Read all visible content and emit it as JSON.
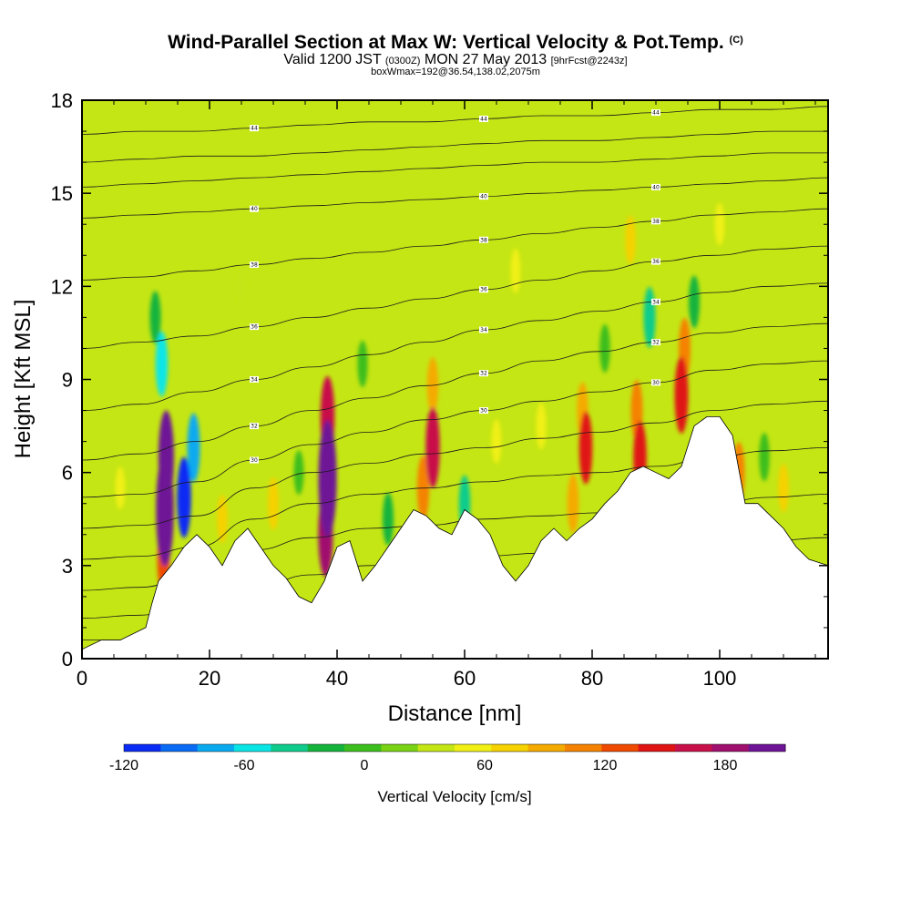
{
  "header": {
    "title": "Wind-Parallel Section at Max W: Vertical Velocity & Pot.Temp.",
    "title_mark": "(C)",
    "valid_prefix": "Valid 1200 JST",
    "valid_zulu": "(0300Z)",
    "valid_date": "MON 27 May 2013",
    "forecast": "[9hrFcst@2243z]",
    "box_info": "boxWmax=192@36.54,138.02,2075m"
  },
  "chart_data": {
    "type": "heatmap",
    "xlabel": "Distance [nm]",
    "ylabel": "Height [Kft MSL]",
    "xlim": [
      0,
      117
    ],
    "ylim": [
      0,
      18
    ],
    "x_ticks": [
      0,
      20,
      40,
      60,
      80,
      100
    ],
    "y_ticks": [
      0,
      3,
      6,
      9,
      12,
      15,
      18
    ],
    "grid": false,
    "colorbar": {
      "title": "Vertical Velocity [cm/s]",
      "placement": "bottom",
      "range": [
        -120,
        210
      ],
      "step": 15,
      "tick_values": [
        -120,
        -60,
        0,
        60,
        120,
        180
      ],
      "tick_labels": [
        "-120",
        "-60",
        "0",
        "60",
        "120",
        "180"
      ],
      "colors": [
        "#0a2af5",
        "#0a6cf5",
        "#0aaaf0",
        "#0ae6e6",
        "#10cc8c",
        "#14b43c",
        "#3cbe1e",
        "#7ad214",
        "#c4e614",
        "#f0f014",
        "#f5d200",
        "#f5aa00",
        "#f58200",
        "#f04a00",
        "#e01414",
        "#c8104a",
        "#a0106e",
        "#6e1496"
      ]
    },
    "background_value": 0,
    "terrain": [
      {
        "x": 0,
        "y": 0.3
      },
      {
        "x": 3,
        "y": 0.6
      },
      {
        "x": 6,
        "y": 0.6
      },
      {
        "x": 10,
        "y": 1.0
      },
      {
        "x": 11,
        "y": 1.8
      },
      {
        "x": 12,
        "y": 2.5
      },
      {
        "x": 14,
        "y": 3.0
      },
      {
        "x": 16,
        "y": 3.6
      },
      {
        "x": 18,
        "y": 4.0
      },
      {
        "x": 20,
        "y": 3.6
      },
      {
        "x": 22,
        "y": 3.0
      },
      {
        "x": 24,
        "y": 3.8
      },
      {
        "x": 26,
        "y": 4.2
      },
      {
        "x": 28,
        "y": 3.6
      },
      {
        "x": 30,
        "y": 3.0
      },
      {
        "x": 32,
        "y": 2.6
      },
      {
        "x": 34,
        "y": 2.0
      },
      {
        "x": 36,
        "y": 1.8
      },
      {
        "x": 38,
        "y": 2.5
      },
      {
        "x": 40,
        "y": 3.6
      },
      {
        "x": 42,
        "y": 3.8
      },
      {
        "x": 44,
        "y": 2.5
      },
      {
        "x": 46,
        "y": 3.0
      },
      {
        "x": 48,
        "y": 3.6
      },
      {
        "x": 50,
        "y": 4.2
      },
      {
        "x": 52,
        "y": 4.8
      },
      {
        "x": 54,
        "y": 4.6
      },
      {
        "x": 56,
        "y": 4.2
      },
      {
        "x": 58,
        "y": 4.0
      },
      {
        "x": 60,
        "y": 4.8
      },
      {
        "x": 62,
        "y": 4.5
      },
      {
        "x": 64,
        "y": 4.0
      },
      {
        "x": 66,
        "y": 3.0
      },
      {
        "x": 68,
        "y": 2.5
      },
      {
        "x": 70,
        "y": 3.0
      },
      {
        "x": 72,
        "y": 3.8
      },
      {
        "x": 74,
        "y": 4.2
      },
      {
        "x": 76,
        "y": 3.8
      },
      {
        "x": 78,
        "y": 4.2
      },
      {
        "x": 80,
        "y": 4.5
      },
      {
        "x": 82,
        "y": 5.0
      },
      {
        "x": 84,
        "y": 5.4
      },
      {
        "x": 86,
        "y": 6.0
      },
      {
        "x": 88,
        "y": 6.2
      },
      {
        "x": 90,
        "y": 6.0
      },
      {
        "x": 92,
        "y": 5.8
      },
      {
        "x": 94,
        "y": 6.2
      },
      {
        "x": 96,
        "y": 7.5
      },
      {
        "x": 98,
        "y": 7.8
      },
      {
        "x": 100,
        "y": 7.8
      },
      {
        "x": 102,
        "y": 7.2
      },
      {
        "x": 104,
        "y": 5.0
      },
      {
        "x": 106,
        "y": 5.0
      },
      {
        "x": 108,
        "y": 4.6
      },
      {
        "x": 110,
        "y": 4.2
      },
      {
        "x": 112,
        "y": 3.6
      },
      {
        "x": 114,
        "y": 3.2
      },
      {
        "x": 117,
        "y": 3.0
      }
    ],
    "cells": [
      {
        "x": 13,
        "y": 4.8,
        "value": 190
      },
      {
        "x": 13.2,
        "y": 6.5,
        "value": 140
      },
      {
        "x": 12.8,
        "y": 3.2,
        "value": 80
      },
      {
        "x": 16,
        "y": 5.2,
        "value": -110
      },
      {
        "x": 17.5,
        "y": 6.8,
        "value": -80
      },
      {
        "x": 12.5,
        "y": 9.5,
        "value": -70
      },
      {
        "x": 11.5,
        "y": 11.0,
        "value": -40
      },
      {
        "x": 38.5,
        "y": 5.8,
        "value": 200
      },
      {
        "x": 38.5,
        "y": 7.8,
        "value": 110
      },
      {
        "x": 38.2,
        "y": 4.0,
        "value": 120
      },
      {
        "x": 55,
        "y": 6.8,
        "value": 110
      },
      {
        "x": 55,
        "y": 8.8,
        "value": 50
      },
      {
        "x": 53.5,
        "y": 5.5,
        "value": 70
      },
      {
        "x": 79,
        "y": 6.8,
        "value": 90
      },
      {
        "x": 78.5,
        "y": 8.0,
        "value": 50
      },
      {
        "x": 77,
        "y": 5.0,
        "value": 55
      },
      {
        "x": 87.5,
        "y": 6.5,
        "value": 90
      },
      {
        "x": 87,
        "y": 8.0,
        "value": 60
      },
      {
        "x": 94,
        "y": 8.5,
        "value": 100
      },
      {
        "x": 94.5,
        "y": 10.0,
        "value": 60
      },
      {
        "x": 96,
        "y": 11.5,
        "value": -40
      },
      {
        "x": 89,
        "y": 11.0,
        "value": -60
      },
      {
        "x": 82,
        "y": 10.0,
        "value": -30
      },
      {
        "x": 60,
        "y": 5.0,
        "value": -50
      },
      {
        "x": 48,
        "y": 4.5,
        "value": -40
      },
      {
        "x": 30,
        "y": 5.0,
        "value": 40
      },
      {
        "x": 34,
        "y": 6.0,
        "value": -20
      },
      {
        "x": 22,
        "y": 4.5,
        "value": 30
      },
      {
        "x": 65,
        "y": 7.0,
        "value": 20
      },
      {
        "x": 103,
        "y": 6.0,
        "value": 60
      },
      {
        "x": 107,
        "y": 6.5,
        "value": -30
      },
      {
        "x": 110,
        "y": 5.5,
        "value": 30
      },
      {
        "x": 86,
        "y": 13.5,
        "value": 30
      },
      {
        "x": 72,
        "y": 7.5,
        "value": 25
      },
      {
        "x": 44,
        "y": 9.5,
        "value": -25
      },
      {
        "x": 6,
        "y": 5.5,
        "value": 15
      },
      {
        "x": 100,
        "y": 14.0,
        "value": 15
      },
      {
        "x": 25,
        "y": 12.0,
        "value": 10
      },
      {
        "x": 68,
        "y": 12.5,
        "value": 20
      }
    ],
    "isentropes": [
      {
        "label": "",
        "y": [
          0.6,
          0.6,
          0.9,
          1.2,
          1.5,
          1.8,
          2.0,
          2.1,
          2.2,
          2.2,
          2.3,
          2.3,
          2.4,
          2.4
        ]
      },
      {
        "label": "",
        "y": [
          1.3,
          1.4,
          1.8,
          2.3,
          2.7,
          3.0,
          3.2,
          3.3,
          3.4,
          3.5,
          3.6,
          3.7,
          3.8,
          3.9
        ]
      },
      {
        "label": "",
        "y": [
          2.2,
          2.3,
          2.7,
          3.5,
          3.9,
          4.2,
          4.3,
          4.5,
          4.6,
          4.7,
          4.9,
          5.0,
          5.2,
          5.3
        ]
      },
      {
        "label": "",
        "y": [
          3.2,
          3.3,
          3.6,
          4.5,
          5.0,
          5.3,
          5.5,
          5.7,
          5.9,
          6.0,
          6.2,
          6.5,
          6.7,
          6.8
        ]
      },
      {
        "label": "",
        "y": [
          4.2,
          4.3,
          4.6,
          5.5,
          6.0,
          6.3,
          6.6,
          6.8,
          7.1,
          7.3,
          7.6,
          8.0,
          8.2,
          8.3
        ]
      },
      {
        "label": "30",
        "y": [
          5.2,
          5.3,
          5.7,
          6.4,
          6.9,
          7.3,
          7.7,
          8.0,
          8.3,
          8.6,
          8.9,
          9.3,
          9.5,
          9.6
        ]
      },
      {
        "label": "32",
        "y": [
          6.4,
          6.6,
          7.0,
          7.5,
          8.0,
          8.4,
          8.8,
          9.2,
          9.6,
          9.9,
          10.2,
          10.5,
          10.7,
          10.8
        ]
      },
      {
        "label": "34",
        "y": [
          8.0,
          8.2,
          8.6,
          9.0,
          9.4,
          9.8,
          10.2,
          10.6,
          10.9,
          11.2,
          11.5,
          11.8,
          12.0,
          12.1
        ]
      },
      {
        "label": "36",
        "y": [
          10.0,
          10.2,
          10.4,
          10.7,
          11.0,
          11.3,
          11.6,
          11.9,
          12.2,
          12.5,
          12.8,
          13.0,
          13.2,
          13.3
        ]
      },
      {
        "label": "38",
        "y": [
          12.2,
          12.3,
          12.5,
          12.7,
          12.9,
          13.1,
          13.3,
          13.5,
          13.7,
          13.9,
          14.1,
          14.3,
          14.4,
          14.5
        ]
      },
      {
        "label": "40",
        "y": [
          14.2,
          14.3,
          14.4,
          14.5,
          14.6,
          14.7,
          14.8,
          14.9,
          15.0,
          15.1,
          15.2,
          15.3,
          15.4,
          15.5
        ]
      },
      {
        "label": "",
        "y": [
          15.2,
          15.3,
          15.4,
          15.5,
          15.6,
          15.7,
          15.8,
          15.9,
          16.0,
          16.0,
          16.1,
          16.2,
          16.3,
          16.3
        ]
      },
      {
        "label": "",
        "y": [
          16.0,
          16.1,
          16.2,
          16.2,
          16.3,
          16.4,
          16.5,
          16.6,
          16.7,
          16.7,
          16.8,
          16.9,
          17.0,
          17.0
        ]
      },
      {
        "label": "44",
        "y": [
          16.9,
          17.0,
          17.0,
          17.1,
          17.2,
          17.3,
          17.3,
          17.4,
          17.5,
          17.5,
          17.6,
          17.7,
          17.7,
          17.8
        ]
      }
    ]
  }
}
